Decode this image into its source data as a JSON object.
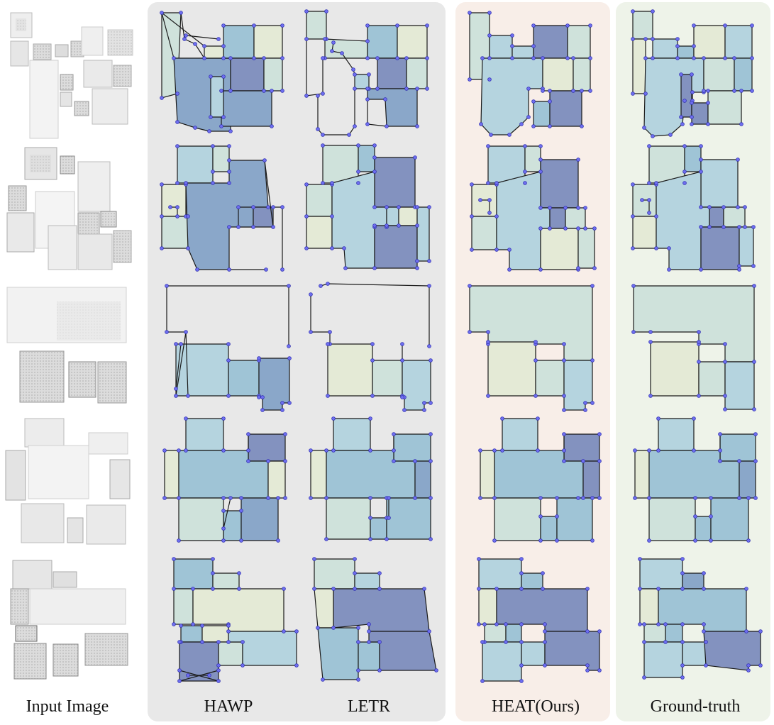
{
  "figure": {
    "column_labels": {
      "input": "Input Image",
      "hawp": "HAWP",
      "letr": "LETR",
      "heat": "HEAT(Ours)",
      "gt": "Ground-truth"
    },
    "rows": 5,
    "colors": {
      "panel_baselines": "#e8e8e8",
      "panel_heat": "#f8eee8",
      "panel_gt": "#eef3e9",
      "room_blue": "#9fc4d6",
      "room_sky": "#b5d4df",
      "room_mint": "#cfe2db",
      "room_cream": "#e4ead6",
      "room_steel": "#8aa7c9",
      "room_indigo": "#8392bf",
      "corner": "#6f6ff0"
    }
  }
}
